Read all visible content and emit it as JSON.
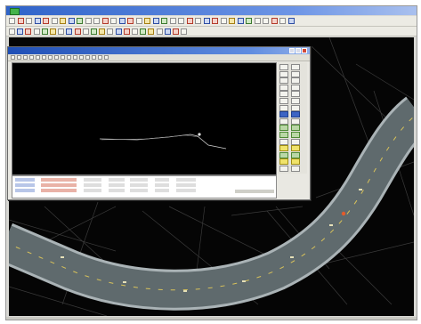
{
  "window": {
    "title": ""
  },
  "profile_window": {
    "title": ""
  },
  "colors": {
    "titlebar": "#2f63c9",
    "canvas_background": "#050505",
    "road_fill": "#5f6a6d",
    "road_edge": "#aab3b6",
    "road_markings": "#d8c25a",
    "triangulation_lines": "#3a3a3a",
    "profile_line": "#cfcfcf",
    "accent_red": "#e25b2c"
  },
  "icons": {
    "app": "app-icon",
    "minimize": "minimize-icon",
    "maximize": "maximize-icon",
    "close": "close-icon"
  }
}
